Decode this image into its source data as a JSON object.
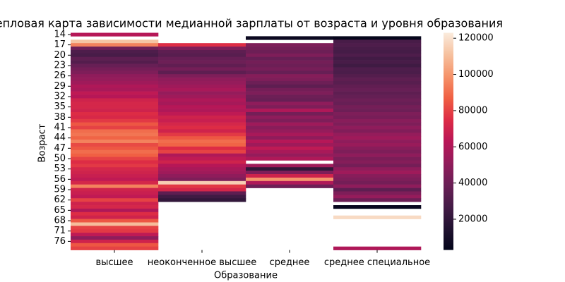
{
  "chart_data": {
    "type": "heatmap",
    "title": "Тепловая карта зависимости медианной зарплаты от возраста и уровня образования",
    "x_label": "Образование",
    "y_label": "Возраст",
    "categories": [
      "высшее",
      "неоконченное высшее",
      "среднее",
      "среднее специальное"
    ],
    "y_categories": [
      14,
      null,
      null,
      17,
      null,
      null,
      20,
      null,
      null,
      23,
      null,
      null,
      26,
      null,
      null,
      29,
      null,
      null,
      32,
      null,
      null,
      35,
      null,
      null,
      38,
      null,
      null,
      41,
      null,
      null,
      44,
      null,
      null,
      47,
      null,
      null,
      50,
      null,
      null,
      53,
      null,
      null,
      56,
      null,
      null,
      59,
      null,
      null,
      62,
      null,
      null,
      65,
      null,
      null,
      68,
      null,
      null,
      71,
      null,
      null,
      76,
      null,
      null
    ],
    "z": [
      [
        62000,
        null,
        null,
        null
      ],
      [
        null,
        null,
        6000,
        4000
      ],
      [
        112000,
        null,
        null,
        28000
      ],
      [
        95000,
        75000,
        45000,
        30000
      ],
      [
        40000,
        45000,
        42000,
        28000
      ],
      [
        30000,
        35000,
        40000,
        27000
      ],
      [
        28000,
        33000,
        45000,
        30000
      ],
      [
        35000,
        38000,
        38000,
        26000
      ],
      [
        32000,
        40000,
        42000,
        28000
      ],
      [
        38000,
        36000,
        40000,
        25000
      ],
      [
        42000,
        42000,
        43000,
        30000
      ],
      [
        45000,
        35000,
        38000,
        29000
      ],
      [
        50000,
        45000,
        47000,
        32000
      ],
      [
        52000,
        50000,
        45000,
        35000
      ],
      [
        55000,
        52000,
        40000,
        33000
      ],
      [
        60000,
        55000,
        35000,
        36000
      ],
      [
        58000,
        58000,
        42000,
        38000
      ],
      [
        65000,
        52000,
        45000,
        35000
      ],
      [
        62000,
        55000,
        40000,
        37000
      ],
      [
        70000,
        60000,
        38000,
        40000
      ],
      [
        72000,
        57000,
        50000,
        38000
      ],
      [
        72000,
        62000,
        45000,
        42000
      ],
      [
        70000,
        60000,
        60000,
        40000
      ],
      [
        75000,
        65000,
        42000,
        45000
      ],
      [
        73000,
        70000,
        50000,
        43000
      ],
      [
        78000,
        68000,
        45000,
        48000
      ],
      [
        85000,
        72000,
        55000,
        45000
      ],
      [
        80000,
        75000,
        48000,
        50000
      ],
      [
        90000,
        70000,
        52000,
        46000
      ],
      [
        92000,
        78000,
        58000,
        52000
      ],
      [
        88000,
        85000,
        50000,
        55000
      ],
      [
        95000,
        90000,
        62000,
        50000
      ],
      [
        82000,
        88000,
        55000,
        53000
      ],
      [
        85000,
        75000,
        65000,
        48000
      ],
      [
        90000,
        80000,
        58000,
        45000
      ],
      [
        87000,
        60000,
        52000,
        50000
      ],
      [
        80000,
        65000,
        60000,
        44000
      ],
      [
        75000,
        70000,
        null,
        47000
      ],
      [
        78000,
        62000,
        55000,
        42000
      ],
      [
        72000,
        58000,
        20000,
        50000
      ],
      [
        70000,
        55000,
        45000,
        55000
      ],
      [
        68000,
        50000,
        70000,
        48000
      ],
      [
        65000,
        45000,
        100000,
        45000
      ],
      [
        72000,
        115000,
        60000,
        42000
      ],
      [
        95000,
        78000,
        40000,
        50000
      ],
      [
        70000,
        72000,
        null,
        35000
      ],
      [
        68000,
        35000,
        null,
        45000
      ],
      [
        65000,
        25000,
        null,
        52000
      ],
      [
        80000,
        20000,
        null,
        40000
      ],
      [
        70000,
        null,
        null,
        null
      ],
      [
        72000,
        null,
        null,
        5000
      ],
      [
        60000,
        null,
        null,
        null
      ],
      [
        75000,
        null,
        null,
        null
      ],
      [
        70000,
        null,
        null,
        118000
      ],
      [
        85000,
        null,
        null,
        null
      ],
      [
        110000,
        null,
        null,
        null
      ],
      [
        80000,
        null,
        null,
        null
      ],
      [
        78000,
        null,
        null,
        null
      ],
      [
        65000,
        null,
        null,
        null
      ],
      [
        50000,
        null,
        null,
        null
      ],
      [
        70000,
        null,
        null,
        null
      ],
      [
        85000,
        null,
        null,
        null
      ],
      [
        80000,
        null,
        null,
        60000
      ]
    ],
    "colormap": "rocket",
    "zlim": [
      3000,
      123000
    ],
    "zticks": [
      20000,
      40000,
      60000,
      80000,
      100000,
      120000
    ]
  }
}
